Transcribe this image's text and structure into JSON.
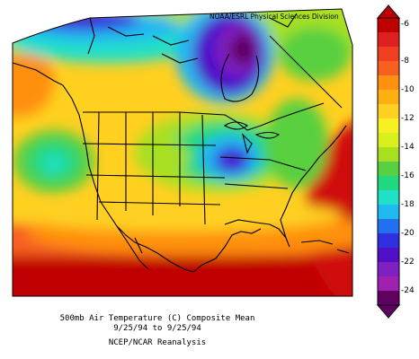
{
  "credit": "NOAA/ESRL Physical Sciences Division",
  "caption": {
    "line1": "500mb Air Temperature (C) Composite Mean",
    "line2": "9/25/94  to 9/25/94",
    "line3": "NCEP/NCAR Reanalysis"
  },
  "colorbar": {
    "ticks": [
      "-6",
      "-8",
      "-10",
      "-12",
      "-14",
      "-16",
      "-18",
      "-20",
      "-22",
      "-24"
    ],
    "colors": [
      "#c00000",
      "#e02020",
      "#f04020",
      "#f86020",
      "#ff9010",
      "#ffb010",
      "#ffd020",
      "#f8f020",
      "#d8f020",
      "#a8e020",
      "#58d040",
      "#20d880",
      "#20e0c8",
      "#20b8f0",
      "#2070f0",
      "#3030e0",
      "#5010c8",
      "#8020c0",
      "#a020b0",
      "#600060"
    ]
  }
}
